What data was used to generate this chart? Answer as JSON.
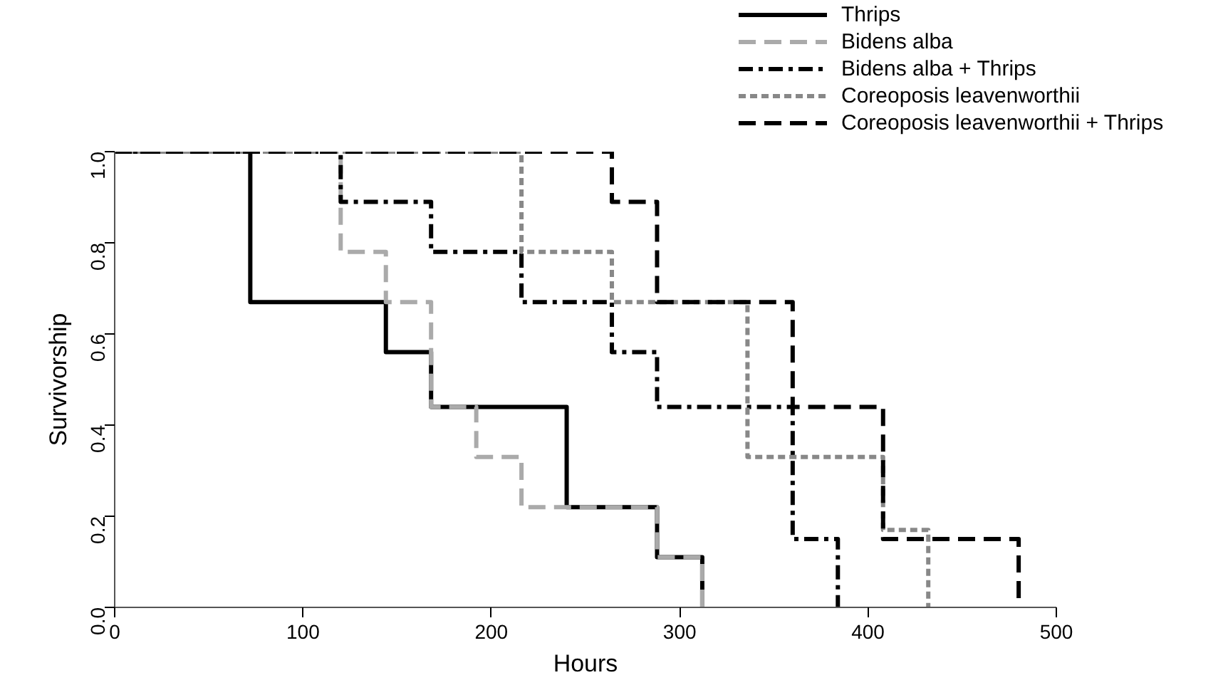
{
  "chart_data": {
    "type": "step",
    "xlabel": "Hours",
    "ylabel": "Survivorship",
    "xlim": [
      0,
      500
    ],
    "xticks": [
      0,
      100,
      200,
      300,
      400,
      500
    ],
    "ylim": [
      0,
      1.0
    ],
    "yticks": [
      {
        "value": 0,
        "label": "0.0"
      },
      0.2,
      0.4,
      0.6,
      0.8,
      {
        "value": 1,
        "label": "1.0"
      }
    ],
    "grid": false,
    "legend": "top right",
    "marker": "none",
    "series": [
      {
        "name": "Thrips",
        "color": "#000000",
        "line_style": "solid",
        "x": [
          0,
          72,
          144,
          168,
          240,
          288,
          312
        ],
        "values": [
          1.0,
          0.67,
          0.56,
          0.44,
          0.22,
          0.11,
          0
        ]
      },
      {
        "name": "Bidens alba",
        "color": "#aaaaaa",
        "line_style": "dashed",
        "x": [
          0,
          120,
          144,
          168,
          192,
          216,
          288,
          312
        ],
        "values": [
          1.0,
          0.78,
          0.67,
          0.44,
          0.33,
          0.22,
          0.11,
          0
        ]
      },
      {
        "name": "Bidens alba + Thrips",
        "color": "#000000",
        "line_style": "dashdot",
        "x": [
          0,
          120,
          168,
          216,
          264,
          288,
          360,
          384
        ],
        "values": [
          1.0,
          0.89,
          0.78,
          0.67,
          0.56,
          0.44,
          0.15,
          0
        ]
      },
      {
        "name": "Coreoposis leavenworthii",
        "color": "#888888",
        "line_style": "dotted",
        "x": [
          0,
          216,
          264,
          336,
          408,
          432
        ],
        "values": [
          1.0,
          0.78,
          0.67,
          0.33,
          0.17,
          0
        ]
      },
      {
        "name": "Coreoposis leavenworthii + Thrips",
        "color": "#000000",
        "line_style": "dashed",
        "x": [
          0,
          264,
          288,
          360,
          408,
          480
        ],
        "values": [
          1.0,
          0.89,
          0.67,
          0.44,
          0.15,
          0
        ]
      }
    ]
  }
}
